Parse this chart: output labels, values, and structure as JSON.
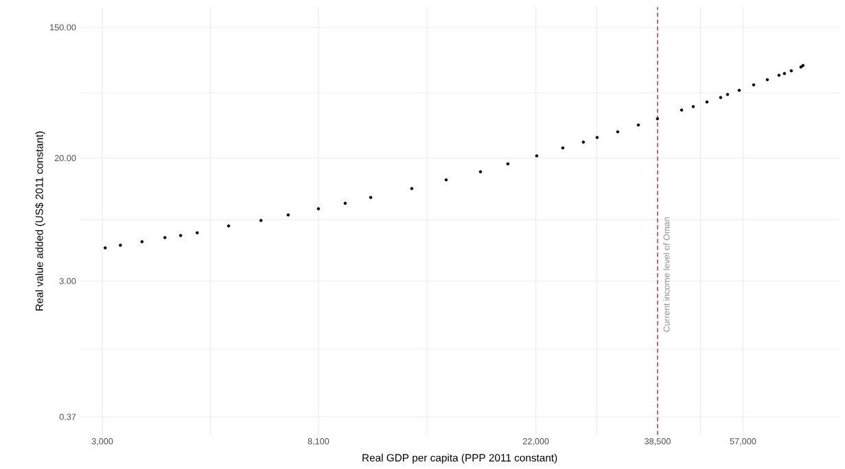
{
  "chart_data": {
    "type": "scatter",
    "xlabel": "Real GDP per capita (PPP 2011 constant)",
    "ylabel": "Real value added (US$ 2011 constant)",
    "log": "xy",
    "grid": true,
    "color": "#000000",
    "xlim": [
      2700,
      89000
    ],
    "ylim": [
      0.28,
      205
    ],
    "xticks": [
      {
        "value": 3000,
        "label": "3,000"
      },
      {
        "value": 4930,
        "label": null
      },
      {
        "value": 8100,
        "label": "8,100"
      },
      {
        "value": 13350,
        "label": null
      },
      {
        "value": 22000,
        "label": "22,000"
      },
      {
        "value": 29100,
        "label": null
      },
      {
        "value": 38500,
        "label": "38,500"
      },
      {
        "value": 46850,
        "label": null
      },
      {
        "value": 57000,
        "label": "57,000"
      }
    ],
    "yticks": [
      {
        "value": 0.37,
        "label": "0.37"
      },
      {
        "value": 1.054,
        "label": null
      },
      {
        "value": 3,
        "label": "3.00"
      },
      {
        "value": 7.75,
        "label": null
      },
      {
        "value": 20,
        "label": "20.00"
      },
      {
        "value": 54.8,
        "label": null
      },
      {
        "value": 150,
        "label": "150.00"
      }
    ],
    "x": [
      3040,
      3260,
      3600,
      4000,
      4300,
      4640,
      5360,
      6220,
      7050,
      8100,
      9160,
      10300,
      12440,
      14570,
      17060,
      19350,
      22090,
      24900,
      27370,
      29160,
      32050,
      35240,
      38480,
      42990,
      45360,
      48300,
      51440,
      53090,
      56020,
      59860,
      63750,
      67260,
      68970,
      71180,
      74400,
      75100
    ],
    "values": [
      5.01,
      5.22,
      5.51,
      5.87,
      6.06,
      6.32,
      7.02,
      7.64,
      8.32,
      9.15,
      9.95,
      10.9,
      12.5,
      14.3,
      16.2,
      18.3,
      20.7,
      23.4,
      25.6,
      27.5,
      30.0,
      33.3,
      36.7,
      41.9,
      44.2,
      47.5,
      50.9,
      53.3,
      56.9,
      61.8,
      67.0,
      71.7,
      73.7,
      76.8,
      81.4,
      83.3
    ],
    "ref_lines": [
      {
        "axis": "x",
        "value": 38500,
        "label": "Current income level of Oman",
        "color": "#c8312b",
        "line_style": "dashed"
      }
    ]
  }
}
